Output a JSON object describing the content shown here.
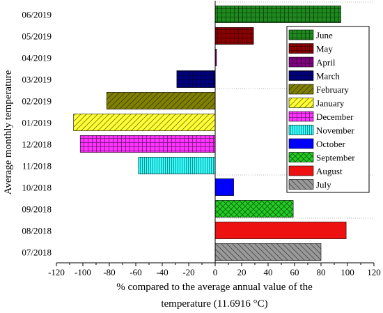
{
  "chart_data": {
    "type": "bar",
    "orientation": "horizontal",
    "xlabel": [
      "% compared to the average annual value of the",
      "temperature (11.6916 °C)"
    ],
    "ylabel": "Average monthly temperature",
    "xlim": [
      -120,
      120
    ],
    "xticks": [
      -120,
      -100,
      -80,
      -60,
      -40,
      -20,
      0,
      20,
      40,
      60,
      80,
      100,
      120
    ],
    "grid": false,
    "legend_position": "right",
    "bars": [
      {
        "category": "06/2019",
        "legend": "June",
        "value": 95,
        "color": "#1e8a1e",
        "pattern": "grid"
      },
      {
        "category": "05/2019",
        "legend": "May",
        "value": 29,
        "color": "#8b0000",
        "pattern": "grid"
      },
      {
        "category": "04/2019",
        "legend": "April",
        "value": 1,
        "color": "#800080",
        "pattern": "grid"
      },
      {
        "category": "03/2019",
        "legend": "March",
        "value": -29,
        "color": "#000080",
        "pattern": "grid"
      },
      {
        "category": "02/2019",
        "legend": "February",
        "value": -82,
        "color": "#808000",
        "pattern": "diag-right"
      },
      {
        "category": "01/2019",
        "legend": "January",
        "value": -107,
        "color": "#ffff33",
        "pattern": "diag-right"
      },
      {
        "category": "12/2018",
        "legend": "December",
        "value": -102,
        "color": "#ff33ff",
        "pattern": "grid"
      },
      {
        "category": "11/2018",
        "legend": "November",
        "value": -58,
        "color": "#33ffff",
        "pattern": "vertical"
      },
      {
        "category": "10/2018",
        "legend": "October",
        "value": 14,
        "color": "#0000ff",
        "pattern": "none"
      },
      {
        "category": "09/2018",
        "legend": "September",
        "value": 59,
        "color": "#22cc22",
        "pattern": "cross"
      },
      {
        "category": "08/2018",
        "legend": "August",
        "value": 99,
        "color": "#ee1111",
        "pattern": "none"
      },
      {
        "category": "07/2018",
        "legend": "July",
        "value": 80,
        "color": "#999999",
        "pattern": "diag-left"
      }
    ]
  }
}
